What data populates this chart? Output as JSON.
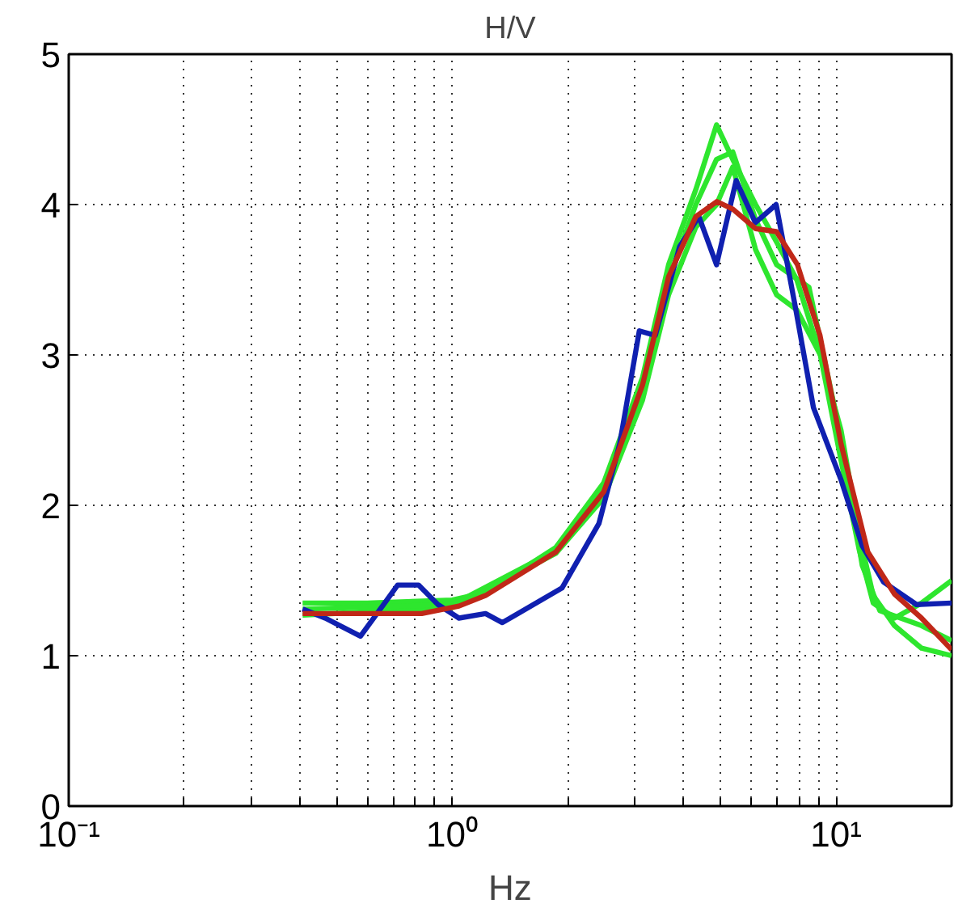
{
  "chart_data": {
    "type": "line",
    "title": "H/V",
    "xlabel": "Hz",
    "log": "x",
    "xlim": [
      0.1,
      20
    ],
    "ylim": [
      0,
      5
    ],
    "xticks": [
      {
        "value": 0.1,
        "label": "10⁻¹"
      },
      {
        "value": 0.2,
        "label": null
      },
      {
        "value": 0.3,
        "label": null
      },
      {
        "value": 0.4,
        "label": null
      },
      {
        "value": 0.5,
        "label": null
      },
      {
        "value": 0.6,
        "label": null
      },
      {
        "value": 0.7,
        "label": null
      },
      {
        "value": 0.8,
        "label": null
      },
      {
        "value": 0.9,
        "label": null
      },
      {
        "value": 1,
        "label": "10⁰"
      },
      {
        "value": 2,
        "label": null
      },
      {
        "value": 3,
        "label": null
      },
      {
        "value": 4,
        "label": null
      },
      {
        "value": 5,
        "label": null
      },
      {
        "value": 6,
        "label": null
      },
      {
        "value": 7,
        "label": null
      },
      {
        "value": 8,
        "label": null
      },
      {
        "value": 9,
        "label": null
      },
      {
        "value": 10,
        "label": "10¹"
      }
    ],
    "yticks": [
      0,
      1,
      2,
      3,
      4,
      5
    ],
    "grid": true,
    "line_style": "solid",
    "series": [
      {
        "color": "#2ee62e",
        "x": [
          0.407,
          0.6,
          1.0,
          1.22,
          1.86,
          2.48,
          3.13,
          3.66,
          4.31,
          4.88,
          5.38,
          6.17,
          7.0,
          7.9,
          9.1,
          10.3,
          11.5,
          12.5,
          14.2,
          16.7,
          20
        ],
        "values": [
          1.35,
          1.35,
          1.37,
          1.42,
          1.72,
          2.15,
          2.85,
          3.6,
          4.1,
          4.53,
          4.3,
          4.0,
          3.75,
          3.5,
          3.0,
          2.3,
          1.7,
          1.35,
          1.25,
          1.35,
          1.5
        ]
      },
      {
        "color": "#2ee62e",
        "x": [
          0.407,
          1.0,
          1.86,
          2.48,
          3.13,
          3.66,
          4.31,
          4.88,
          5.38,
          6.17,
          7.0,
          7.9,
          9.1,
          10.3,
          11.5,
          12.5,
          14.2,
          16.7,
          20
        ],
        "values": [
          1.27,
          1.32,
          1.68,
          2.05,
          2.7,
          3.4,
          3.85,
          4.0,
          4.25,
          3.7,
          3.4,
          3.3,
          3.0,
          2.5,
          1.8,
          1.4,
          1.2,
          1.05,
          1.0
        ]
      },
      {
        "color": "#2ee62e",
        "x": [
          0.407,
          1.0,
          1.86,
          2.48,
          3.13,
          3.66,
          4.31,
          4.88,
          5.38,
          6.17,
          7.0,
          8.5,
          10.3,
          11.7,
          13.0,
          16.7,
          20
        ],
        "values": [
          1.31,
          1.34,
          1.7,
          2.1,
          2.78,
          3.5,
          4.0,
          4.3,
          4.35,
          3.9,
          3.6,
          3.45,
          2.45,
          1.6,
          1.3,
          1.2,
          1.1
        ]
      },
      {
        "color": "#1020b0",
        "x": [
          0.407,
          0.466,
          0.576,
          0.666,
          0.72,
          0.816,
          0.917,
          1.04,
          1.22,
          1.35,
          1.93,
          2.41,
          2.73,
          3.07,
          3.38,
          3.91,
          4.39,
          4.88,
          5.49,
          6.16,
          6.98,
          7.83,
          8.73,
          10.3,
          11.7,
          13.3,
          16.2,
          20
        ],
        "values": [
          1.31,
          1.25,
          1.13,
          1.35,
          1.47,
          1.47,
          1.34,
          1.25,
          1.28,
          1.22,
          1.45,
          1.88,
          2.41,
          3.16,
          3.13,
          3.72,
          3.92,
          3.6,
          4.16,
          3.88,
          4.0,
          3.32,
          2.65,
          2.17,
          1.73,
          1.49,
          1.34,
          1.35
        ]
      },
      {
        "color": "#c02818",
        "x": [
          0.407,
          0.576,
          0.832,
          1.04,
          1.22,
          1.86,
          2.48,
          3.13,
          3.66,
          4.31,
          4.89,
          5.38,
          6.17,
          6.99,
          7.93,
          9.08,
          10.3,
          12.1,
          14.2,
          16.7,
          20
        ],
        "values": [
          1.28,
          1.28,
          1.28,
          1.33,
          1.4,
          1.69,
          2.09,
          2.8,
          3.52,
          3.92,
          4.02,
          3.97,
          3.84,
          3.82,
          3.6,
          3.13,
          2.41,
          1.69,
          1.41,
          1.25,
          1.04
        ]
      }
    ]
  }
}
